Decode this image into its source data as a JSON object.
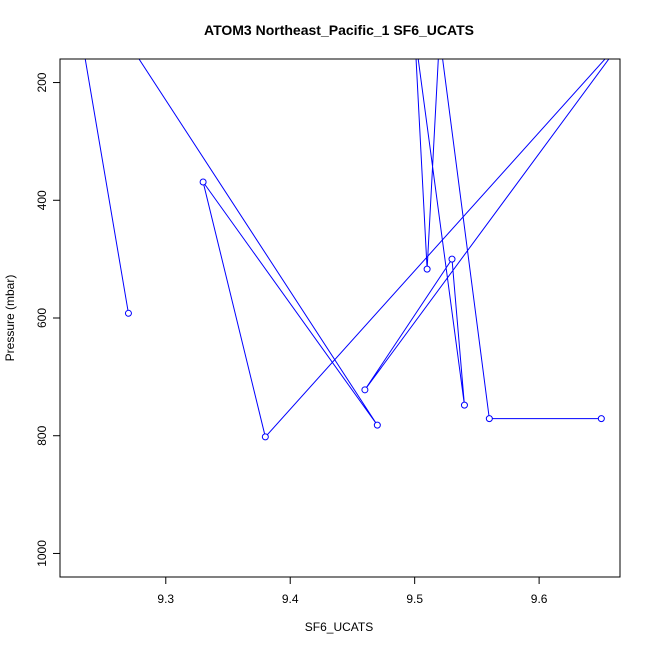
{
  "chart_data": {
    "type": "line",
    "title": "ATOM3 Northeast_Pacific_1 SF6_UCATS",
    "xlabel": "SF6_UCATS",
    "ylabel": "Pressure (mbar)",
    "xlim": [
      9.215,
      9.665
    ],
    "ylim": [
      1040,
      160
    ],
    "y_reversed": true,
    "x_ticks": [
      9.3,
      9.4,
      9.5,
      9.6
    ],
    "x_tick_labels": [
      "9.3",
      "9.4",
      "9.5",
      "9.6"
    ],
    "y_ticks": [
      200,
      400,
      600,
      800,
      1000
    ],
    "y_tick_labels": [
      "200",
      "400",
      "600",
      "800",
      "1000"
    ],
    "series": [
      {
        "color": "#0000ff",
        "x": [
          9.27,
          9.22,
          9.47,
          9.33,
          9.38,
          9.67,
          9.46,
          9.53,
          9.54,
          9.5,
          9.51,
          9.52,
          9.56,
          9.65
        ],
        "y": [
          592,
          -30,
          782,
          369,
          802,
          120,
          722,
          500,
          748,
          115,
          517,
          120,
          771,
          771
        ],
        "markers": [
          true,
          false,
          true,
          true,
          true,
          false,
          true,
          true,
          true,
          false,
          true,
          false,
          true,
          true
        ]
      }
    ],
    "grid": false,
    "legend": "none"
  }
}
